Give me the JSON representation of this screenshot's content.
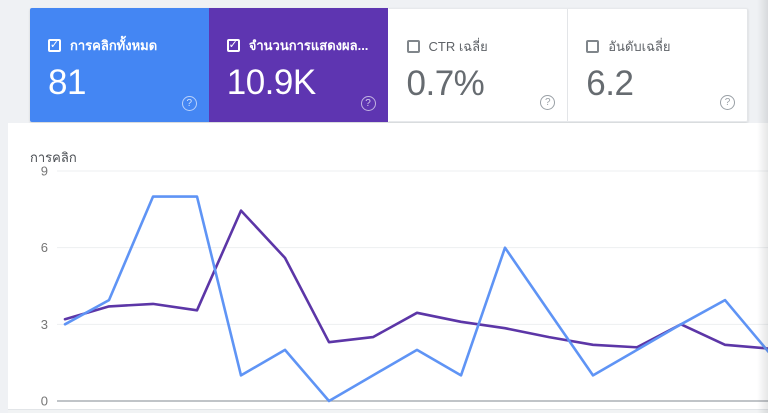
{
  "page": {
    "background": "#eff1f4"
  },
  "icons": {
    "checkbox_check": "✓",
    "help": "?"
  },
  "metric_cards": [
    {
      "label": "การคลิกทั้งหมด",
      "value": "81",
      "checked": true,
      "background": "#4486f3",
      "text_color": "#ffffff"
    },
    {
      "label": "จำนวนการแสดงผล...",
      "value": "10.9K",
      "checked": true,
      "background": "#5e35b1",
      "text_color": "#ffffff"
    },
    {
      "label": "CTR เฉลี่ย",
      "value": "0.7%",
      "checked": false,
      "background": "#ffffff",
      "text_color": "#666b70"
    },
    {
      "label": "อันดับเฉลี่ย",
      "value": "6.2",
      "checked": false,
      "background": "#ffffff",
      "text_color": "#666b70"
    }
  ],
  "chart_data": {
    "type": "line",
    "title": "การคลิก",
    "ylabel": "การคลิก",
    "ylim": [
      0,
      9
    ],
    "yticks": [
      9,
      6,
      3,
      0
    ],
    "grid": "horizontal",
    "x_axis": {
      "num_points": 17,
      "tick_labels_visible": false
    },
    "legend_position": "none (legend carried by colored metric cards)",
    "series": [
      {
        "name": "การคลิกทั้งหมด",
        "color": "#5f94f5",
        "values": [
          3,
          3.95,
          8,
          8,
          1,
          2,
          0,
          1,
          2,
          1,
          6,
          3.5,
          1,
          2,
          3,
          3.95,
          1.9
        ]
      },
      {
        "name": "จำนวนการแสดงผล...",
        "color": "#5c36a7",
        "axis": "hidden right axis (cropped), values given in left-axis scale as rendered",
        "values": [
          3.2,
          3.7,
          3.8,
          3.55,
          7.45,
          5.6,
          2.3,
          2.5,
          3.45,
          3.1,
          2.85,
          2.5,
          2.2,
          2.1,
          3.0,
          2.2,
          2.05
        ]
      }
    ],
    "colors": {
      "gridline": "#edeff1",
      "zero_axis_line": "#9aa0a6",
      "tick_label": "#757575"
    }
  }
}
